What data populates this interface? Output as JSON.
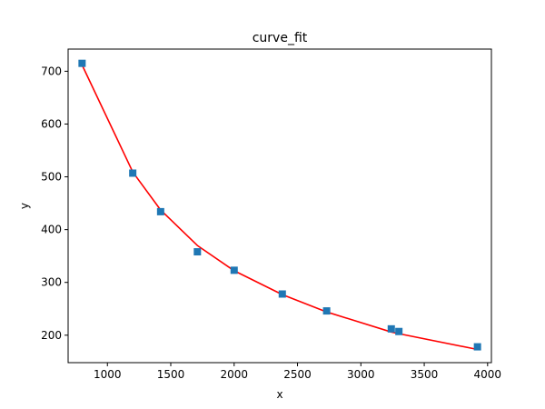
{
  "chart_data": {
    "type": "scatter",
    "title": "curve_fit",
    "xlabel": "x",
    "ylabel": "y",
    "xlim": [
      690,
      4030
    ],
    "ylim": [
      148,
      742
    ],
    "xticks": [
      1000,
      1500,
      2000,
      2500,
      3000,
      3500,
      4000
    ],
    "yticks": [
      200,
      300,
      400,
      500,
      600,
      700
    ],
    "grid": false,
    "series": [
      {
        "kind": "scatter",
        "marker": "square",
        "color": "#1f77b4",
        "x": [
          800,
          1200,
          1420,
          1710,
          2000,
          2380,
          2730,
          3240,
          3300,
          3920
        ],
        "y": [
          715,
          507,
          434,
          358,
          323,
          278,
          246,
          212,
          207,
          178
        ]
      },
      {
        "kind": "line",
        "color": "#ff0000",
        "x": [
          800,
          1200,
          1420,
          1710,
          2000,
          2380,
          2730,
          3240,
          3300,
          3920
        ],
        "y": [
          712,
          509,
          437,
          370,
          322,
          277,
          244,
          206,
          203,
          173
        ]
      }
    ]
  }
}
